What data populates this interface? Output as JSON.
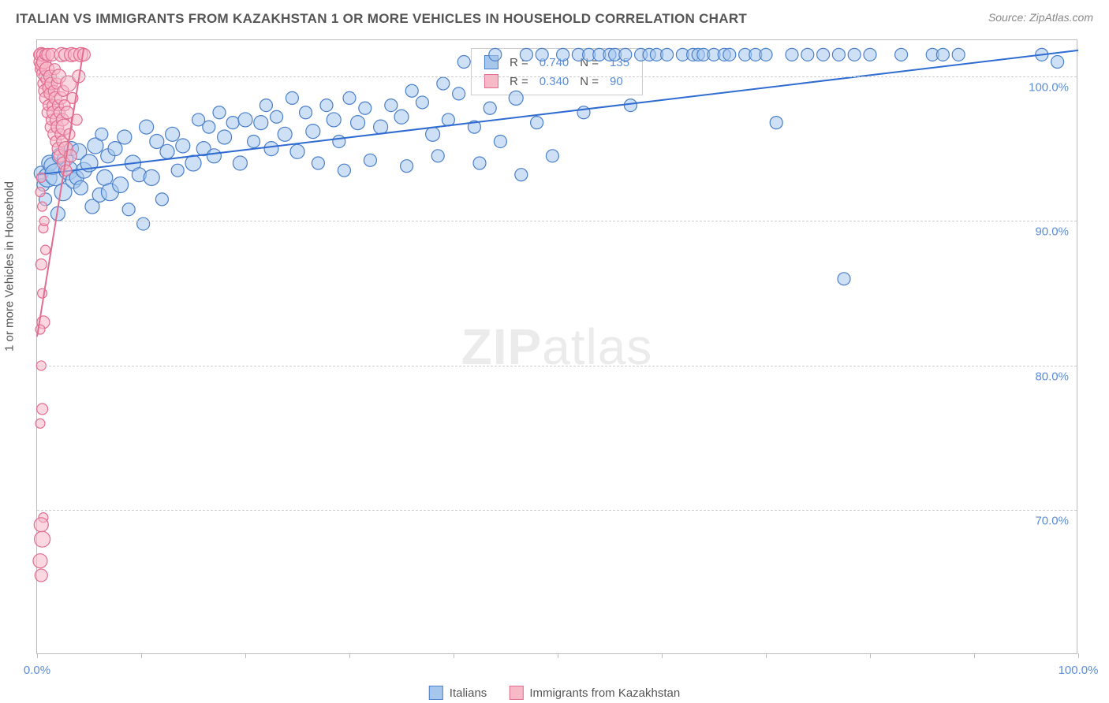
{
  "title": "ITALIAN VS IMMIGRANTS FROM KAZAKHSTAN 1 OR MORE VEHICLES IN HOUSEHOLD CORRELATION CHART",
  "source": "Source: ZipAtlas.com",
  "ylabel": "1 or more Vehicles in Household",
  "watermark_a": "ZIP",
  "watermark_b": "atlas",
  "chart": {
    "type": "scatter",
    "xlim": [
      0,
      100
    ],
    "ylim": [
      60,
      102.5
    ],
    "yticks": [
      70,
      80,
      90,
      100
    ],
    "ytick_labels": [
      "70.0%",
      "80.0%",
      "90.0%",
      "100.0%"
    ],
    "xtick_positions": [
      0,
      10,
      20,
      30,
      40,
      50,
      60,
      70,
      80,
      90,
      100
    ],
    "xtick_labels": {
      "0": "0.0%",
      "100": "100.0%"
    },
    "grid_color": "#cccccc",
    "background_color": "#ffffff",
    "border_color": "#bbbbbb",
    "text_color": "#555555",
    "axis_text_color": "#5b8dd6",
    "series": [
      {
        "name": "Italians",
        "fill": "#a6c6ec",
        "fill_opacity": 0.55,
        "stroke": "#4a7fc9",
        "R": "0.740",
        "N": "135",
        "trend": {
          "x1": 0,
          "y1": 93.2,
          "x2": 100,
          "y2": 101.8,
          "color": "#2f6bd0",
          "width": 2
        },
        "points": [
          [
            0.4,
            93.3,
            9
          ],
          [
            0.6,
            92.5,
            8
          ],
          [
            0.8,
            91.5,
            8
          ],
          [
            1.0,
            93.0,
            12
          ],
          [
            1.2,
            94.0,
            10
          ],
          [
            1.5,
            93.8,
            11
          ],
          [
            1.8,
            93.2,
            14
          ],
          [
            2.0,
            90.5,
            9
          ],
          [
            2.2,
            94.5,
            10
          ],
          [
            2.5,
            92.0,
            11
          ],
          [
            2.7,
            94.3,
            10
          ],
          [
            3.0,
            93.5,
            12
          ],
          [
            3.3,
            95.0,
            9
          ],
          [
            3.5,
            92.8,
            10
          ],
          [
            3.8,
            93.0,
            9
          ],
          [
            4.0,
            94.8,
            10
          ],
          [
            4.2,
            92.3,
            9
          ],
          [
            4.5,
            93.5,
            10
          ],
          [
            5.0,
            94.0,
            11
          ],
          [
            5.3,
            91.0,
            9
          ],
          [
            5.6,
            95.2,
            10
          ],
          [
            6.0,
            91.8,
            9
          ],
          [
            6.2,
            96.0,
            8
          ],
          [
            6.5,
            93.0,
            10
          ],
          [
            6.8,
            94.5,
            9
          ],
          [
            7.0,
            92.0,
            11
          ],
          [
            7.5,
            95.0,
            9
          ],
          [
            8.0,
            92.5,
            10
          ],
          [
            8.4,
            95.8,
            9
          ],
          [
            8.8,
            90.8,
            8
          ],
          [
            9.2,
            94.0,
            10
          ],
          [
            9.8,
            93.2,
            9
          ],
          [
            10.2,
            89.8,
            8
          ],
          [
            10.5,
            96.5,
            9
          ],
          [
            11.0,
            93.0,
            10
          ],
          [
            11.5,
            95.5,
            9
          ],
          [
            12.0,
            91.5,
            8
          ],
          [
            12.5,
            94.8,
            9
          ],
          [
            13.0,
            96.0,
            9
          ],
          [
            13.5,
            93.5,
            8
          ],
          [
            14.0,
            95.2,
            9
          ],
          [
            15.0,
            94.0,
            10
          ],
          [
            15.5,
            97.0,
            8
          ],
          [
            16.0,
            95.0,
            9
          ],
          [
            16.5,
            96.5,
            8
          ],
          [
            17.0,
            94.5,
            9
          ],
          [
            17.5,
            97.5,
            8
          ],
          [
            18.0,
            95.8,
            9
          ],
          [
            18.8,
            96.8,
            8
          ],
          [
            19.5,
            94.0,
            9
          ],
          [
            20.0,
            97.0,
            9
          ],
          [
            20.8,
            95.5,
            8
          ],
          [
            21.5,
            96.8,
            9
          ],
          [
            22.0,
            98.0,
            8
          ],
          [
            22.5,
            95.0,
            9
          ],
          [
            23.0,
            97.2,
            8
          ],
          [
            23.8,
            96.0,
            9
          ],
          [
            24.5,
            98.5,
            8
          ],
          [
            25.0,
            94.8,
            9
          ],
          [
            25.8,
            97.5,
            8
          ],
          [
            26.5,
            96.2,
            9
          ],
          [
            27.0,
            94.0,
            8
          ],
          [
            27.8,
            98.0,
            8
          ],
          [
            28.5,
            97.0,
            9
          ],
          [
            29.0,
            95.5,
            8
          ],
          [
            29.5,
            93.5,
            8
          ],
          [
            30.0,
            98.5,
            8
          ],
          [
            30.8,
            96.8,
            9
          ],
          [
            31.5,
            97.8,
            8
          ],
          [
            32.0,
            94.2,
            8
          ],
          [
            33.0,
            96.5,
            9
          ],
          [
            34.0,
            98.0,
            8
          ],
          [
            35.0,
            97.2,
            9
          ],
          [
            35.5,
            93.8,
            8
          ],
          [
            36.0,
            99.0,
            8
          ],
          [
            37.0,
            98.2,
            8
          ],
          [
            38.0,
            96.0,
            9
          ],
          [
            38.5,
            94.5,
            8
          ],
          [
            39.0,
            99.5,
            8
          ],
          [
            39.5,
            97.0,
            8
          ],
          [
            40.5,
            98.8,
            8
          ],
          [
            41.0,
            101.0,
            8
          ],
          [
            42.0,
            96.5,
            8
          ],
          [
            42.5,
            94.0,
            8
          ],
          [
            43.5,
            97.8,
            8
          ],
          [
            44.0,
            101.5,
            8
          ],
          [
            44.5,
            95.5,
            8
          ],
          [
            46.0,
            98.5,
            9
          ],
          [
            46.5,
            93.2,
            8
          ],
          [
            47.0,
            101.5,
            8
          ],
          [
            48.0,
            96.8,
            8
          ],
          [
            48.5,
            101.5,
            8
          ],
          [
            49.5,
            94.5,
            8
          ],
          [
            50.5,
            101.5,
            8
          ],
          [
            52.0,
            101.5,
            8
          ],
          [
            52.5,
            97.5,
            8
          ],
          [
            53.0,
            101.5,
            8
          ],
          [
            54.0,
            101.5,
            8
          ],
          [
            55.0,
            101.5,
            8
          ],
          [
            55.5,
            101.5,
            8
          ],
          [
            56.5,
            101.5,
            8
          ],
          [
            57.0,
            98.0,
            8
          ],
          [
            58.0,
            101.5,
            8
          ],
          [
            58.8,
            101.5,
            8
          ],
          [
            59.5,
            101.5,
            8
          ],
          [
            60.5,
            101.5,
            8
          ],
          [
            62.0,
            101.5,
            8
          ],
          [
            63.0,
            101.5,
            8
          ],
          [
            63.5,
            101.5,
            8
          ],
          [
            64.0,
            101.5,
            8
          ],
          [
            65.0,
            101.5,
            8
          ],
          [
            66.0,
            101.5,
            8
          ],
          [
            66.5,
            101.5,
            8
          ],
          [
            68.0,
            101.5,
            8
          ],
          [
            69.0,
            101.5,
            8
          ],
          [
            70.0,
            101.5,
            8
          ],
          [
            71.0,
            96.8,
            8
          ],
          [
            72.5,
            101.5,
            8
          ],
          [
            74.0,
            101.5,
            8
          ],
          [
            75.5,
            101.5,
            8
          ],
          [
            77.0,
            101.5,
            8
          ],
          [
            77.5,
            86.0,
            8
          ],
          [
            78.5,
            101.5,
            8
          ],
          [
            80.0,
            101.5,
            8
          ],
          [
            83.0,
            101.5,
            8
          ],
          [
            86.0,
            101.5,
            8
          ],
          [
            87.0,
            101.5,
            8
          ],
          [
            88.5,
            101.5,
            8
          ],
          [
            96.5,
            101.5,
            8
          ],
          [
            98.0,
            101.0,
            8
          ]
        ]
      },
      {
        "name": "Immigrants from Kazakhstan",
        "fill": "#f7b8c8",
        "fill_opacity": 0.55,
        "stroke": "#e16d8f",
        "R": "0.340",
        "N": "90",
        "trend": {
          "x1": 0,
          "y1": 82,
          "x2": 4.5,
          "y2": 102,
          "color": "#e16d8f",
          "width": 2
        },
        "points": [
          [
            0.2,
            101.5,
            7
          ],
          [
            0.3,
            101.0,
            8
          ],
          [
            0.35,
            100.5,
            7
          ],
          [
            0.4,
            101.5,
            9
          ],
          [
            0.45,
            100.8,
            8
          ],
          [
            0.5,
            100.2,
            7
          ],
          [
            0.55,
            101.5,
            8
          ],
          [
            0.6,
            99.5,
            7
          ],
          [
            0.65,
            101.0,
            9
          ],
          [
            0.7,
            100.0,
            7
          ],
          [
            0.75,
            99.0,
            8
          ],
          [
            0.8,
            101.5,
            7
          ],
          [
            0.85,
            98.5,
            8
          ],
          [
            0.9,
            99.8,
            7
          ],
          [
            0.95,
            100.5,
            9
          ],
          [
            1.0,
            97.5,
            7
          ],
          [
            1.05,
            101.5,
            8
          ],
          [
            1.1,
            98.0,
            7
          ],
          [
            1.15,
            99.2,
            8
          ],
          [
            1.2,
            98.8,
            7
          ],
          [
            1.25,
            100.0,
            8
          ],
          [
            1.3,
            96.5,
            7
          ],
          [
            1.35,
            99.5,
            8
          ],
          [
            1.4,
            97.0,
            7
          ],
          [
            1.45,
            101.5,
            8
          ],
          [
            1.5,
            98.0,
            7
          ],
          [
            1.55,
            97.5,
            8
          ],
          [
            1.6,
            99.0,
            7
          ],
          [
            1.65,
            96.0,
            8
          ],
          [
            1.7,
            100.5,
            7
          ],
          [
            1.75,
            98.5,
            8
          ],
          [
            1.8,
            95.5,
            7
          ],
          [
            1.85,
            97.0,
            8
          ],
          [
            1.9,
            99.5,
            7
          ],
          [
            1.95,
            96.5,
            8
          ],
          [
            2.0,
            98.0,
            7
          ],
          [
            2.05,
            95.0,
            8
          ],
          [
            2.1,
            100.0,
            9
          ],
          [
            2.15,
            97.5,
            7
          ],
          [
            2.2,
            94.5,
            8
          ],
          [
            2.25,
            96.0,
            7
          ],
          [
            2.3,
            98.5,
            8
          ],
          [
            2.35,
            101.5,
            9
          ],
          [
            2.4,
            95.5,
            7
          ],
          [
            2.45,
            97.0,
            8
          ],
          [
            2.5,
            99.0,
            7
          ],
          [
            2.55,
            94.0,
            8
          ],
          [
            2.6,
            96.5,
            10
          ],
          [
            2.65,
            98.0,
            7
          ],
          [
            2.7,
            101.5,
            8
          ],
          [
            2.75,
            95.0,
            9
          ],
          [
            2.8,
            93.5,
            7
          ],
          [
            2.9,
            97.5,
            8
          ],
          [
            3.0,
            99.5,
            10
          ],
          [
            3.1,
            96.0,
            7
          ],
          [
            3.2,
            94.5,
            8
          ],
          [
            3.3,
            101.5,
            9
          ],
          [
            3.4,
            98.5,
            7
          ],
          [
            3.6,
            101.5,
            8
          ],
          [
            3.8,
            97.0,
            7
          ],
          [
            4.0,
            100.0,
            8
          ],
          [
            4.2,
            101.5,
            9
          ],
          [
            4.5,
            101.5,
            8
          ],
          [
            0.3,
            92.0,
            6
          ],
          [
            0.4,
            93.0,
            6
          ],
          [
            0.5,
            91.0,
            6
          ],
          [
            0.6,
            89.5,
            6
          ],
          [
            0.7,
            90.0,
            6
          ],
          [
            0.8,
            88.0,
            6
          ],
          [
            0.4,
            87.0,
            7
          ],
          [
            0.5,
            85.0,
            6
          ],
          [
            0.6,
            83.0,
            8
          ],
          [
            0.3,
            82.5,
            6
          ],
          [
            0.4,
            80.0,
            6
          ],
          [
            0.5,
            77.0,
            7
          ],
          [
            0.3,
            76.0,
            6
          ],
          [
            0.6,
            69.5,
            6
          ],
          [
            0.4,
            69.0,
            9
          ],
          [
            0.5,
            68.0,
            10
          ],
          [
            0.3,
            66.5,
            9
          ],
          [
            0.4,
            65.5,
            8
          ]
        ]
      }
    ]
  },
  "legend_bottom": [
    {
      "label": "Italians",
      "fill": "#a6c6ec",
      "stroke": "#4a7fc9"
    },
    {
      "label": "Immigrants from Kazakhstan",
      "fill": "#f7b8c8",
      "stroke": "#e16d8f"
    }
  ]
}
